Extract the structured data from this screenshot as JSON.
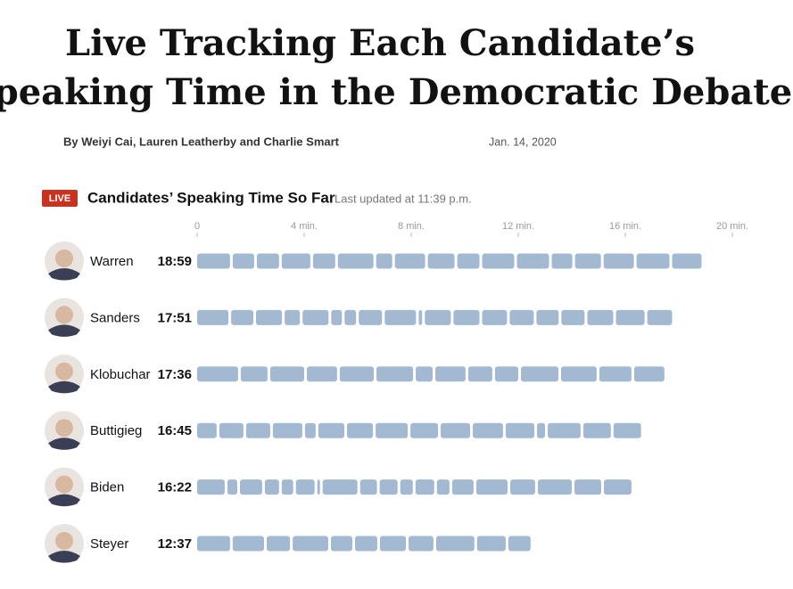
{
  "header": {
    "headline": [
      "Live Tracking Each Candidate’s",
      "Speaking Time in the Democratic Debate"
    ],
    "byline": "By Weiyi Cai, Lauren Leatherby and Charlie Smart",
    "date": "Jan. 14, 2020"
  },
  "chart_data": {
    "type": "segmented-bar",
    "badge": "LIVE",
    "title": "Candidates’ Speaking Time So Far",
    "subtitle": "Last updated at 11:39 p.m.",
    "categories": [
      "Warren",
      "Sanders",
      "Klobuchar",
      "Buttigieg",
      "Biden",
      "Steyer"
    ],
    "values": [
      18.983,
      17.85,
      17.6,
      16.75,
      16.367,
      12.617
    ],
    "value_labels": [
      "18:59",
      "17:51",
      "17:36",
      "16:45",
      "16:22",
      "12:37"
    ],
    "segments": [
      [
        1.33,
        0.9,
        0.93,
        1.17,
        0.93,
        1.43,
        0.7,
        1.23,
        1.1,
        0.93,
        1.3,
        1.3,
        0.87,
        1.07,
        1.23,
        1.33,
        1.2
      ],
      [
        1.27,
        0.93,
        1.07,
        0.67,
        1.07,
        0.5,
        0.53,
        0.97,
        1.27,
        0.23,
        1.07,
        1.07,
        1.03,
        1,
        0.93,
        0.97,
        1.07,
        1.17,
        1.03
      ],
      [
        1.63,
        1.1,
        1.37,
        1.23,
        1.37,
        1.47,
        0.73,
        1.23,
        1,
        0.97,
        1.5,
        1.43,
        1.3,
        1.23
      ],
      [
        0.83,
        1,
        1,
        1.2,
        0.5,
        1.07,
        1.07,
        1.3,
        1.13,
        1.2,
        1.23,
        1.17,
        0.4,
        1.33,
        1.13,
        1.13
      ],
      [
        1.13,
        0.47,
        0.93,
        0.63,
        0.53,
        0.8,
        0.2,
        1.4,
        0.73,
        0.77,
        0.57,
        0.8,
        0.57,
        0.9,
        1.27,
        1.03,
        1.37,
        1.1,
        1.13
      ],
      [
        1.33,
        1.27,
        0.97,
        1.43,
        0.9,
        0.93,
        1.07,
        1.03,
        1.53,
        1.17,
        0.93
      ]
    ],
    "color": "#a3b8d1",
    "xlim": [
      0,
      20
    ],
    "xticks": [
      0,
      {
        "value": 4,
        "label": "4 min."
      },
      {
        "value": 8,
        "label": "8 min."
      },
      {
        "value": 12,
        "label": "12 min."
      },
      {
        "value": 16,
        "label": "16 min."
      },
      {
        "value": 20,
        "label": "20 min."
      }
    ]
  }
}
